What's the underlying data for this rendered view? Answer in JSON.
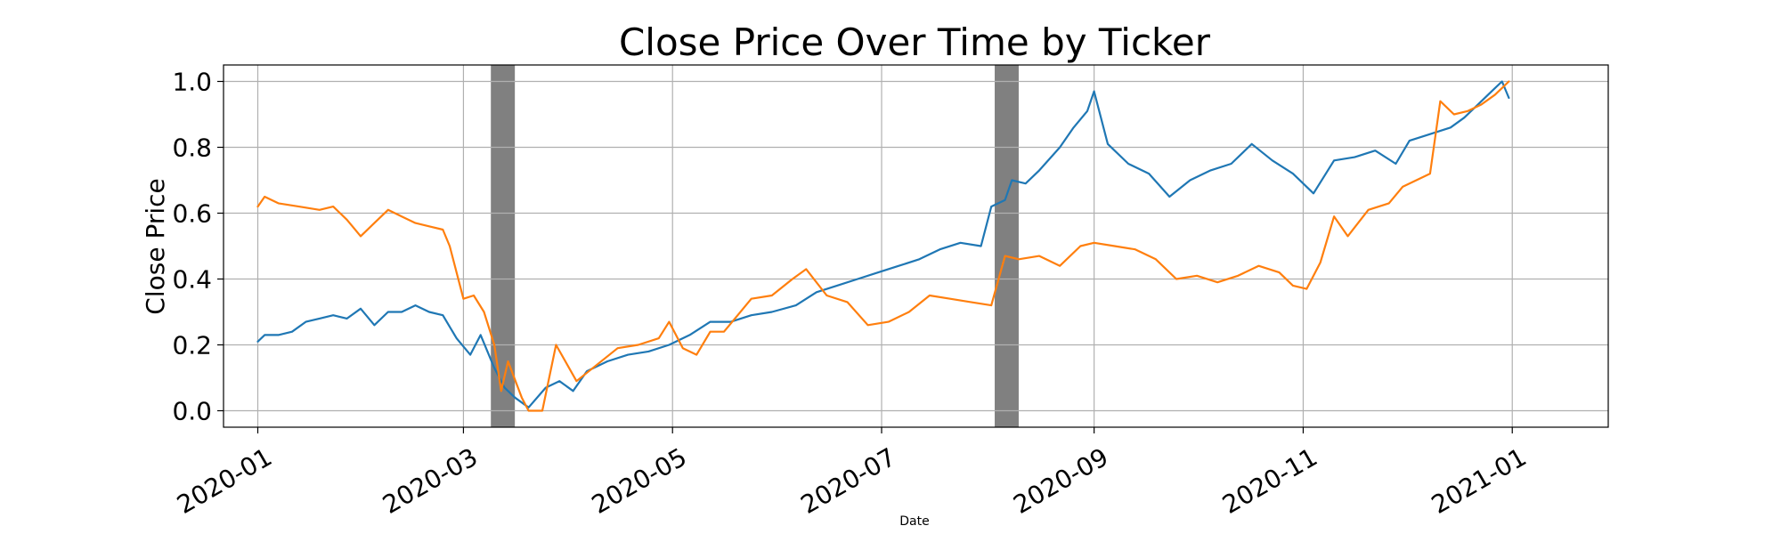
{
  "chart_data": {
    "type": "line",
    "title": "Close Price Over Time by Ticker",
    "xlabel": "Date",
    "ylabel": "Close Price",
    "xlim": [
      "2019-12-22",
      "2021-01-29"
    ],
    "ylim": [
      -0.05,
      1.05
    ],
    "xticks": [
      "2020-01-01",
      "2020-03-01",
      "2020-05-01",
      "2020-07-01",
      "2020-09-01",
      "2020-11-01",
      "2021-01-01"
    ],
    "xtick_labels": [
      "2020-01",
      "2020-03",
      "2020-05",
      "2020-07",
      "2020-09",
      "2020-11",
      "2021-01"
    ],
    "yticks": [
      0.0,
      0.2,
      0.4,
      0.6,
      0.8,
      1.0
    ],
    "ytick_labels": [
      "0.0",
      "0.2",
      "0.4",
      "0.6",
      "0.8",
      "1.0"
    ],
    "grid": true,
    "shaded_regions": [
      {
        "start": "2020-03-09",
        "end": "2020-03-16",
        "color": "#808080"
      },
      {
        "start": "2020-08-03",
        "end": "2020-08-10",
        "color": "#808080"
      }
    ],
    "series": [
      {
        "color": "#1f77b4",
        "points": [
          [
            "2020-01-01",
            0.21
          ],
          [
            "2020-01-03",
            0.23
          ],
          [
            "2020-01-07",
            0.23
          ],
          [
            "2020-01-11",
            0.24
          ],
          [
            "2020-01-15",
            0.27
          ],
          [
            "2020-01-19",
            0.28
          ],
          [
            "2020-01-23",
            0.29
          ],
          [
            "2020-01-27",
            0.28
          ],
          [
            "2020-01-31",
            0.31
          ],
          [
            "2020-02-04",
            0.26
          ],
          [
            "2020-02-08",
            0.3
          ],
          [
            "2020-02-12",
            0.3
          ],
          [
            "2020-02-16",
            0.32
          ],
          [
            "2020-02-20",
            0.3
          ],
          [
            "2020-02-24",
            0.29
          ],
          [
            "2020-02-28",
            0.22
          ],
          [
            "2020-03-03",
            0.17
          ],
          [
            "2020-03-06",
            0.23
          ],
          [
            "2020-03-10",
            0.13
          ],
          [
            "2020-03-13",
            0.07
          ],
          [
            "2020-03-16",
            0.04
          ],
          [
            "2020-03-20",
            0.01
          ],
          [
            "2020-03-25",
            0.07
          ],
          [
            "2020-03-29",
            0.09
          ],
          [
            "2020-04-02",
            0.06
          ],
          [
            "2020-04-06",
            0.12
          ],
          [
            "2020-04-12",
            0.15
          ],
          [
            "2020-04-18",
            0.17
          ],
          [
            "2020-04-24",
            0.18
          ],
          [
            "2020-04-30",
            0.2
          ],
          [
            "2020-05-06",
            0.23
          ],
          [
            "2020-05-12",
            0.27
          ],
          [
            "2020-05-18",
            0.27
          ],
          [
            "2020-05-24",
            0.29
          ],
          [
            "2020-05-30",
            0.3
          ],
          [
            "2020-06-06",
            0.32
          ],
          [
            "2020-06-12",
            0.36
          ],
          [
            "2020-06-18",
            0.38
          ],
          [
            "2020-06-24",
            0.4
          ],
          [
            "2020-06-30",
            0.42
          ],
          [
            "2020-07-06",
            0.44
          ],
          [
            "2020-07-12",
            0.46
          ],
          [
            "2020-07-18",
            0.49
          ],
          [
            "2020-07-24",
            0.51
          ],
          [
            "2020-07-30",
            0.5
          ],
          [
            "2020-08-02",
            0.62
          ],
          [
            "2020-08-06",
            0.64
          ],
          [
            "2020-08-08",
            0.7
          ],
          [
            "2020-08-12",
            0.69
          ],
          [
            "2020-08-16",
            0.73
          ],
          [
            "2020-08-22",
            0.8
          ],
          [
            "2020-08-26",
            0.86
          ],
          [
            "2020-08-30",
            0.91
          ],
          [
            "2020-09-01",
            0.97
          ],
          [
            "2020-09-05",
            0.81
          ],
          [
            "2020-09-11",
            0.75
          ],
          [
            "2020-09-17",
            0.72
          ],
          [
            "2020-09-23",
            0.65
          ],
          [
            "2020-09-29",
            0.7
          ],
          [
            "2020-10-05",
            0.73
          ],
          [
            "2020-10-11",
            0.75
          ],
          [
            "2020-10-17",
            0.81
          ],
          [
            "2020-10-23",
            0.76
          ],
          [
            "2020-10-29",
            0.72
          ],
          [
            "2020-11-04",
            0.66
          ],
          [
            "2020-11-10",
            0.76
          ],
          [
            "2020-11-16",
            0.77
          ],
          [
            "2020-11-22",
            0.79
          ],
          [
            "2020-11-28",
            0.75
          ],
          [
            "2020-12-02",
            0.82
          ],
          [
            "2020-12-08",
            0.84
          ],
          [
            "2020-12-14",
            0.86
          ],
          [
            "2020-12-18",
            0.89
          ],
          [
            "2020-12-22",
            0.93
          ],
          [
            "2020-12-26",
            0.97
          ],
          [
            "2020-12-29",
            1.0
          ],
          [
            "2020-12-31",
            0.95
          ]
        ]
      },
      {
        "color": "#ff7f0e",
        "points": [
          [
            "2020-01-01",
            0.62
          ],
          [
            "2020-01-03",
            0.65
          ],
          [
            "2020-01-07",
            0.63
          ],
          [
            "2020-01-13",
            0.62
          ],
          [
            "2020-01-19",
            0.61
          ],
          [
            "2020-01-23",
            0.62
          ],
          [
            "2020-01-27",
            0.58
          ],
          [
            "2020-01-31",
            0.53
          ],
          [
            "2020-02-04",
            0.57
          ],
          [
            "2020-02-08",
            0.61
          ],
          [
            "2020-02-12",
            0.59
          ],
          [
            "2020-02-16",
            0.57
          ],
          [
            "2020-02-20",
            0.56
          ],
          [
            "2020-02-24",
            0.55
          ],
          [
            "2020-02-26",
            0.5
          ],
          [
            "2020-03-01",
            0.34
          ],
          [
            "2020-03-04",
            0.35
          ],
          [
            "2020-03-07",
            0.3
          ],
          [
            "2020-03-10",
            0.2
          ],
          [
            "2020-03-12",
            0.06
          ],
          [
            "2020-03-14",
            0.15
          ],
          [
            "2020-03-18",
            0.04
          ],
          [
            "2020-03-20",
            0.0
          ],
          [
            "2020-03-24",
            0.0
          ],
          [
            "2020-03-28",
            0.2
          ],
          [
            "2020-04-03",
            0.09
          ],
          [
            "2020-04-09",
            0.14
          ],
          [
            "2020-04-15",
            0.19
          ],
          [
            "2020-04-21",
            0.2
          ],
          [
            "2020-04-27",
            0.22
          ],
          [
            "2020-04-30",
            0.27
          ],
          [
            "2020-05-04",
            0.19
          ],
          [
            "2020-05-08",
            0.17
          ],
          [
            "2020-05-12",
            0.24
          ],
          [
            "2020-05-16",
            0.24
          ],
          [
            "2020-05-20",
            0.29
          ],
          [
            "2020-05-24",
            0.34
          ],
          [
            "2020-05-30",
            0.35
          ],
          [
            "2020-06-05",
            0.4
          ],
          [
            "2020-06-09",
            0.43
          ],
          [
            "2020-06-15",
            0.35
          ],
          [
            "2020-06-21",
            0.33
          ],
          [
            "2020-06-27",
            0.26
          ],
          [
            "2020-07-03",
            0.27
          ],
          [
            "2020-07-09",
            0.3
          ],
          [
            "2020-07-15",
            0.35
          ],
          [
            "2020-07-21",
            0.34
          ],
          [
            "2020-07-27",
            0.33
          ],
          [
            "2020-08-02",
            0.32
          ],
          [
            "2020-08-06",
            0.47
          ],
          [
            "2020-08-10",
            0.46
          ],
          [
            "2020-08-16",
            0.47
          ],
          [
            "2020-08-22",
            0.44
          ],
          [
            "2020-08-28",
            0.5
          ],
          [
            "2020-09-01",
            0.51
          ],
          [
            "2020-09-07",
            0.5
          ],
          [
            "2020-09-13",
            0.49
          ],
          [
            "2020-09-19",
            0.46
          ],
          [
            "2020-09-25",
            0.4
          ],
          [
            "2020-10-01",
            0.41
          ],
          [
            "2020-10-07",
            0.39
          ],
          [
            "2020-10-13",
            0.41
          ],
          [
            "2020-10-19",
            0.44
          ],
          [
            "2020-10-25",
            0.42
          ],
          [
            "2020-10-29",
            0.38
          ],
          [
            "2020-11-02",
            0.37
          ],
          [
            "2020-11-06",
            0.45
          ],
          [
            "2020-11-10",
            0.59
          ],
          [
            "2020-11-14",
            0.53
          ],
          [
            "2020-11-20",
            0.61
          ],
          [
            "2020-11-26",
            0.63
          ],
          [
            "2020-11-30",
            0.68
          ],
          [
            "2020-12-04",
            0.7
          ],
          [
            "2020-12-08",
            0.72
          ],
          [
            "2020-12-11",
            0.94
          ],
          [
            "2020-12-15",
            0.9
          ],
          [
            "2020-12-19",
            0.91
          ],
          [
            "2020-12-23",
            0.93
          ],
          [
            "2020-12-27",
            0.96
          ],
          [
            "2020-12-31",
            1.0
          ]
        ]
      }
    ]
  }
}
